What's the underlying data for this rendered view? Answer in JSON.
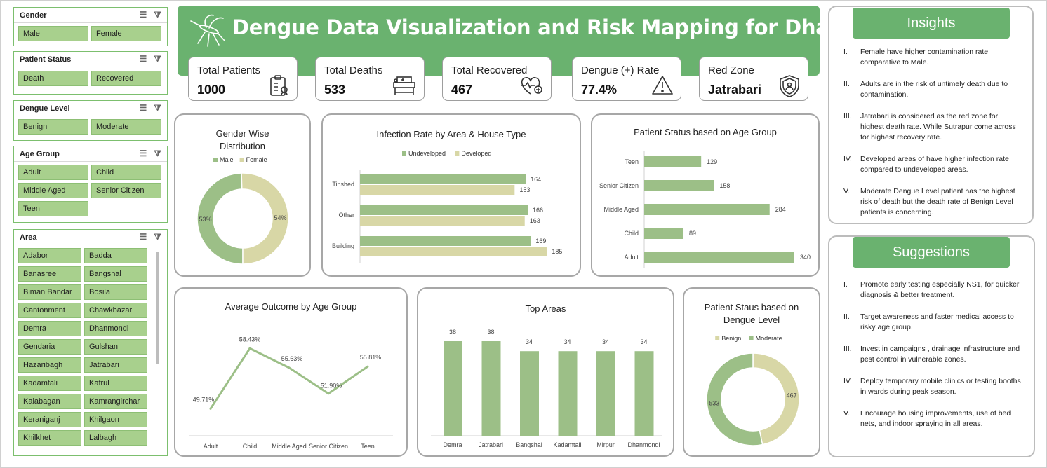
{
  "dashboard": {
    "title": "Dengue Data Visualization and Risk Mapping for Dhaka City"
  },
  "slicers": [
    {
      "label": "Gender",
      "items": [
        "Male",
        "Female"
      ]
    },
    {
      "label": "Patient Status",
      "items": [
        "Death",
        "Recovered"
      ]
    },
    {
      "label": "Dengue Level",
      "items": [
        "Benign",
        "Moderate"
      ]
    },
    {
      "label": "Age Group",
      "items": [
        "Adult",
        "Child",
        "Middle Aged",
        "Senior Citizen",
        "Teen"
      ]
    },
    {
      "label": "Area",
      "items": [
        "Adabor",
        "Badda",
        "Banasree",
        "Bangshal",
        "Biman Bandar",
        "Bosila",
        "Cantonment",
        "Chawkbazar",
        "Demra",
        "Dhanmondi",
        "Gendaria",
        "Gulshan",
        "Hazaribagh",
        "Jatrabari",
        "Kadamtali",
        "Kafrul",
        "Kalabagan",
        "Kamrangirchar",
        "Keraniganj",
        "Khilgaon",
        "Khilkhet",
        "Lalbagh"
      ]
    }
  ],
  "kpis": [
    {
      "label": "Total Patients",
      "value": "1000",
      "icon": "clipboard-icon"
    },
    {
      "label": "Total Deaths",
      "value": "533",
      "icon": "hospital-bed-icon"
    },
    {
      "label": "Total Recovered",
      "value": "467",
      "icon": "heart-pulse-icon"
    },
    {
      "label": "Dengue (+) Rate",
      "value": "77.4%",
      "icon": "warning-icon"
    },
    {
      "label": "Red Zone",
      "value": "Jatrabari",
      "icon": "shield-icon"
    }
  ],
  "insights": {
    "title": "Insights",
    "items": [
      {
        "num": "I.",
        "text": "Female have higher contamination rate comparative to Male."
      },
      {
        "num": "II.",
        "text": "Adults are in the risk of untimely death due to contamination."
      },
      {
        "num": "III.",
        "text": "Jatrabari is considered as the red zone for highest death rate. While Sutrapur come across for highest recovery rate."
      },
      {
        "num": "IV.",
        "text": "Developed areas of have higher infection rate compared to undeveloped areas."
      },
      {
        "num": "V.",
        "text": "Moderate Dengue Level patient has the highest risk of death but the death rate of Benign Level patients is concerning."
      }
    ]
  },
  "suggestions": {
    "title": "Suggestions",
    "items": [
      {
        "num": "I.",
        "text": "Promote early testing especially NS1, for quicker diagnosis & better treatment."
      },
      {
        "num": "II.",
        "text": "Target awareness and faster medical access to risky age group."
      },
      {
        "num": "III.",
        "text": "Invest in campaigns , drainage infrastructure and pest control in vulnerable zones."
      },
      {
        "num": "IV.",
        "text": "Deploy temporary mobile clinics or testing booths in wards during peak season."
      },
      {
        "num": "V.",
        "text": "Encourage housing improvements, use of bed nets, and indoor spraying  in all areas."
      }
    ]
  },
  "colors": {
    "green": "#9cbf87",
    "tan": "#d8d7a6",
    "banner": "#6ab26f",
    "line": "#9cbf87"
  },
  "chart_data": [
    {
      "type": "pie",
      "title": "Gender Wise Distribution",
      "donut": true,
      "labels": [
        "Male",
        "Female"
      ],
      "values": [
        53,
        54
      ],
      "value_labels": [
        "53%",
        "54%"
      ],
      "legend": "top"
    },
    {
      "type": "bar",
      "orientation": "horizontal",
      "title": "Infection Rate by Area & House Type",
      "categories": [
        "Tinshed",
        "Other",
        "Building"
      ],
      "series": [
        {
          "name": "Undeveloped",
          "values": [
            164,
            166,
            169
          ]
        },
        {
          "name": "Developed",
          "values": [
            153,
            163,
            185
          ]
        }
      ],
      "legend": "top"
    },
    {
      "type": "bar",
      "orientation": "horizontal",
      "title": "Patient Status based on Age Group",
      "categories": [
        "Teen",
        "Senior Citizen",
        "Middle Aged",
        "Child",
        "Adult"
      ],
      "values": [
        129,
        158,
        284,
        89,
        340
      ]
    },
    {
      "type": "line",
      "title": "Average Outcome by Age Group",
      "categories": [
        "Adult",
        "Child",
        "Middle Aged",
        "Senior Citizen",
        "Teen"
      ],
      "values": [
        49.71,
        58.43,
        55.63,
        51.9,
        55.81
      ],
      "value_labels": [
        "49.71%",
        "58.43%",
        "55.63%",
        "51.90%",
        "55.81%"
      ]
    },
    {
      "type": "bar",
      "title": "Top Areas",
      "categories": [
        "Demra",
        "Jatrabari",
        "Bangshal",
        "Kadamtali",
        "Mirpur",
        "Dhanmondi"
      ],
      "values": [
        38,
        38,
        34,
        34,
        34,
        34
      ]
    },
    {
      "type": "pie",
      "title": "Patient Staus based on Dengue Level",
      "donut": true,
      "labels": [
        "Benign",
        "Moderate"
      ],
      "values": [
        467,
        533
      ],
      "legend": "top"
    }
  ]
}
